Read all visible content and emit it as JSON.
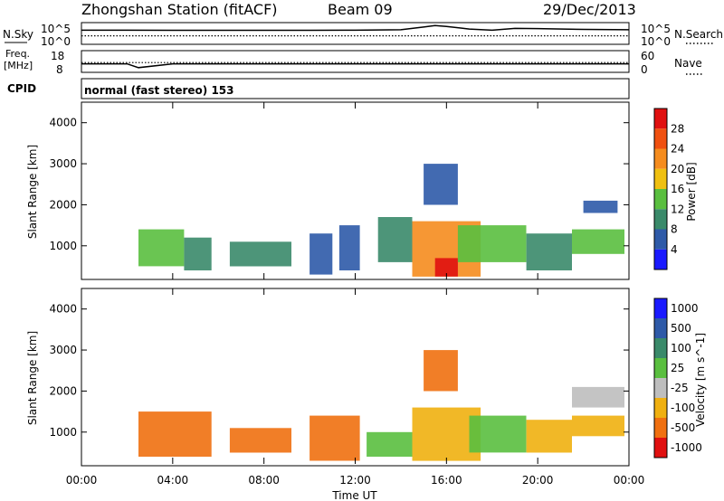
{
  "header": {
    "title": "Zhongshan Station (fitACF)",
    "beam": "Beam 09",
    "date": "29/Dec/2013"
  },
  "top_panels": {
    "nsky_label": "N.Sky",
    "nsearch_label": "N.Search",
    "nsky_ticks": [
      "10^5",
      "10^0"
    ],
    "nsearch_ticks": [
      "10^5",
      "10^0"
    ],
    "freq_label_1": "Freq.",
    "freq_label_2": "[MHz]",
    "freq_ticks": [
      "18",
      "8"
    ],
    "nave_label": "Nave",
    "nave_ticks": [
      "60",
      "0"
    ],
    "cpid_label": "CPID",
    "cpid_text": "normal (fast stereo) 153"
  },
  "chart_data": [
    {
      "type": "line",
      "title": "",
      "xlabel": "",
      "ylabel": "N.Sky",
      "y2label": "N.Search",
      "ylim": [
        1,
        100000
      ],
      "yscale": "log",
      "x": [
        "00:00",
        "02:00",
        "04:00",
        "06:00",
        "08:00",
        "10:00",
        "12:00",
        "14:00",
        "15:00",
        "15:30",
        "16:00",
        "17:00",
        "18:00",
        "19:00",
        "20:00",
        "22:00",
        "24:00"
      ],
      "series": [
        {
          "name": "N.Sky",
          "values": [
            3000,
            3000,
            2900,
            2800,
            2800,
            2900,
            3000,
            4000,
            20000,
            50000,
            30000,
            6000,
            3000,
            9000,
            8000,
            5000,
            4000
          ]
        },
        {
          "name": "N.Search",
          "values": [
            100,
            100,
            100,
            100,
            100,
            100,
            100,
            100,
            100,
            100,
            100,
            100,
            100,
            100,
            100,
            100,
            100
          ]
        }
      ]
    },
    {
      "type": "line",
      "title": "",
      "xlabel": "",
      "ylabel": "Freq. [MHz]",
      "y2label": "Nave",
      "ylim": [
        8,
        18
      ],
      "x": [
        "00:00",
        "02:00",
        "02:30",
        "04:00",
        "08:00",
        "12:00",
        "16:00",
        "20:00",
        "24:00"
      ],
      "series": [
        {
          "name": "Freq.",
          "values": [
            12,
            12,
            10,
            12,
            12,
            12,
            12,
            12,
            12
          ]
        },
        {
          "name": "Nave",
          "values": [
            28,
            28,
            28,
            28,
            28,
            28,
            28,
            28,
            28
          ]
        }
      ]
    },
    {
      "type": "heatmap",
      "title": "",
      "xlabel": "",
      "ylabel": "Slant Range [km]",
      "ylim": [
        180,
        4500
      ],
      "yticks": [
        "1000",
        "2000",
        "3000",
        "4000"
      ],
      "colorbar_label": "Power [dB]",
      "colorbar_ticks": [
        "4",
        "8",
        "12",
        "16",
        "20",
        "24",
        "28"
      ],
      "colors": [
        "#1a1aff",
        "#2e5aa8",
        "#3a8a6a",
        "#5abf3f",
        "#f0c010",
        "#f58c1e",
        "#f05010",
        "#e01010"
      ],
      "regions": [
        {
          "t0": 2.5,
          "t1": 4.5,
          "r0": 500,
          "r1": 1400,
          "level": 3
        },
        {
          "t0": 4.5,
          "t1": 5.7,
          "r0": 400,
          "r1": 1200,
          "level": 2
        },
        {
          "t0": 6.5,
          "t1": 9.2,
          "r0": 500,
          "r1": 1100,
          "level": 2
        },
        {
          "t0": 10.0,
          "t1": 11.0,
          "r0": 300,
          "r1": 1300,
          "level": 1
        },
        {
          "t0": 11.3,
          "t1": 12.2,
          "r0": 400,
          "r1": 1500,
          "level": 1
        },
        {
          "t0": 13.0,
          "t1": 14.5,
          "r0": 600,
          "r1": 1700,
          "level": 2
        },
        {
          "t0": 14.5,
          "t1": 17.5,
          "r0": 250,
          "r1": 1600,
          "level": 5
        },
        {
          "t0": 15.5,
          "t1": 16.5,
          "r0": 250,
          "r1": 700,
          "level": 7
        },
        {
          "t0": 16.5,
          "t1": 19.5,
          "r0": 600,
          "r1": 1500,
          "level": 3
        },
        {
          "t0": 19.5,
          "t1": 21.5,
          "r0": 400,
          "r1": 1300,
          "level": 2
        },
        {
          "t0": 21.5,
          "t1": 23.8,
          "r0": 800,
          "r1": 1400,
          "level": 3
        },
        {
          "t0": 22.0,
          "t1": 23.5,
          "r0": 1800,
          "r1": 2100,
          "level": 1
        },
        {
          "t0": 15.0,
          "t1": 16.5,
          "r0": 2000,
          "r1": 3000,
          "level": 1
        }
      ]
    },
    {
      "type": "heatmap",
      "title": "",
      "xlabel": "Time UT",
      "ylabel": "Slant Range [km]",
      "ylim": [
        180,
        4500
      ],
      "yticks": [
        "1000",
        "2000",
        "3000",
        "4000"
      ],
      "xticks": [
        "00:00",
        "04:00",
        "08:00",
        "12:00",
        "16:00",
        "20:00",
        "00:00"
      ],
      "colorbar_label": "Velocity [m s^-1]",
      "colorbar_ticks": [
        "1000",
        "500",
        "100",
        "25",
        "-25",
        "-100",
        "-500",
        "-1000"
      ],
      "colors": [
        "#1a1aff",
        "#2e5aa8",
        "#3a8a6a",
        "#5abf3f",
        "#bebebe",
        "#f0b010",
        "#f07010",
        "#e01010"
      ],
      "regions": [
        {
          "t0": 2.5,
          "t1": 5.7,
          "r0": 400,
          "r1": 1500,
          "level": 6
        },
        {
          "t0": 6.5,
          "t1": 9.2,
          "r0": 500,
          "r1": 1100,
          "level": 6
        },
        {
          "t0": 10.0,
          "t1": 12.2,
          "r0": 300,
          "r1": 1400,
          "level": 6
        },
        {
          "t0": 12.5,
          "t1": 14.5,
          "r0": 400,
          "r1": 1000,
          "level": 3
        },
        {
          "t0": 14.5,
          "t1": 17.5,
          "r0": 300,
          "r1": 1600,
          "level": 5
        },
        {
          "t0": 17.0,
          "t1": 19.5,
          "r0": 500,
          "r1": 1400,
          "level": 3
        },
        {
          "t0": 19.5,
          "t1": 21.5,
          "r0": 500,
          "r1": 1300,
          "level": 5
        },
        {
          "t0": 21.5,
          "t1": 23.8,
          "r0": 900,
          "r1": 1400,
          "level": 5
        },
        {
          "t0": 21.5,
          "t1": 23.8,
          "r0": 1600,
          "r1": 2100,
          "level": 4
        },
        {
          "t0": 15.0,
          "t1": 16.5,
          "r0": 2000,
          "r1": 3000,
          "level": 6
        }
      ]
    }
  ]
}
